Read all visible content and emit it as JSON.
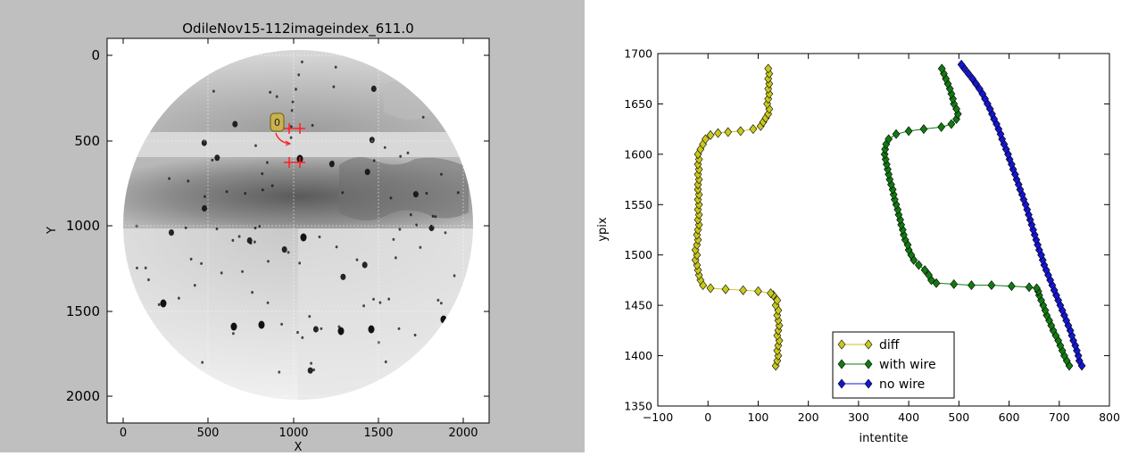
{
  "left_plot": {
    "title": "OdileNov15-112imageindex_611.0",
    "xlabel": "X",
    "ylabel": "Y",
    "xticks": [
      "0",
      "500",
      "1000",
      "1500",
      "2000"
    ],
    "yticks": [
      "0",
      "500",
      "1000",
      "1500",
      "2000"
    ],
    "annotation_label": "0",
    "crosshair_color": "#ff2020"
  },
  "chart_data": {
    "type": "line",
    "title": "",
    "xlabel": "intentite",
    "ylabel": "ypix",
    "xlim": [
      -100,
      800
    ],
    "ylim": [
      1350,
      1700
    ],
    "xticks": [
      "−100",
      "0",
      "100",
      "200",
      "300",
      "400",
      "500",
      "600",
      "700",
      "800"
    ],
    "yticks": [
      "1350",
      "1400",
      "1450",
      "1500",
      "1550",
      "1600",
      "1650",
      "1700"
    ],
    "legend_position": "lower-center",
    "series": [
      {
        "name": "diff",
        "color": "#c8c81e",
        "marker": "diamond",
        "points": [
          [
            135,
            1390
          ],
          [
            138,
            1395
          ],
          [
            140,
            1400
          ],
          [
            138,
            1405
          ],
          [
            140,
            1410
          ],
          [
            142,
            1415
          ],
          [
            138,
            1420
          ],
          [
            140,
            1425
          ],
          [
            142,
            1430
          ],
          [
            140,
            1435
          ],
          [
            138,
            1440
          ],
          [
            140,
            1445
          ],
          [
            135,
            1450
          ],
          [
            138,
            1455
          ],
          [
            130,
            1460
          ],
          [
            125,
            1462
          ],
          [
            100,
            1464
          ],
          [
            70,
            1465
          ],
          [
            35,
            1466
          ],
          [
            5,
            1467
          ],
          [
            -10,
            1470
          ],
          [
            -15,
            1475
          ],
          [
            -18,
            1480
          ],
          [
            -20,
            1485
          ],
          [
            -22,
            1490
          ],
          [
            -25,
            1495
          ],
          [
            -22,
            1500
          ],
          [
            -25,
            1505
          ],
          [
            -22,
            1510
          ],
          [
            -20,
            1515
          ],
          [
            -22,
            1520
          ],
          [
            -20,
            1525
          ],
          [
            -18,
            1530
          ],
          [
            -20,
            1535
          ],
          [
            -18,
            1540
          ],
          [
            -20,
            1545
          ],
          [
            -18,
            1550
          ],
          [
            -20,
            1555
          ],
          [
            -18,
            1560
          ],
          [
            -20,
            1565
          ],
          [
            -20,
            1570
          ],
          [
            -18,
            1575
          ],
          [
            -20,
            1580
          ],
          [
            -18,
            1585
          ],
          [
            -20,
            1590
          ],
          [
            -18,
            1595
          ],
          [
            -20,
            1600
          ],
          [
            -15,
            1605
          ],
          [
            -10,
            1610
          ],
          [
            -5,
            1615
          ],
          [
            5,
            1619
          ],
          [
            20,
            1621
          ],
          [
            40,
            1622
          ],
          [
            65,
            1623
          ],
          [
            90,
            1625
          ],
          [
            105,
            1628
          ],
          [
            110,
            1632
          ],
          [
            115,
            1636
          ],
          [
            120,
            1640
          ],
          [
            122,
            1645
          ],
          [
            118,
            1650
          ],
          [
            120,
            1655
          ],
          [
            122,
            1660
          ],
          [
            120,
            1665
          ],
          [
            122,
            1670
          ],
          [
            120,
            1675
          ],
          [
            122,
            1680
          ],
          [
            120,
            1685
          ]
        ]
      },
      {
        "name": "with wire",
        "color": "#117a11",
        "marker": "diamond",
        "points": [
          [
            720,
            1390
          ],
          [
            715,
            1395
          ],
          [
            710,
            1400
          ],
          [
            706,
            1405
          ],
          [
            702,
            1410
          ],
          [
            698,
            1415
          ],
          [
            693,
            1420
          ],
          [
            688,
            1425
          ],
          [
            684,
            1430
          ],
          [
            680,
            1435
          ],
          [
            675,
            1440
          ],
          [
            672,
            1445
          ],
          [
            668,
            1450
          ],
          [
            664,
            1455
          ],
          [
            660,
            1460
          ],
          [
            658,
            1464
          ],
          [
            655,
            1467
          ],
          [
            640,
            1468
          ],
          [
            605,
            1469
          ],
          [
            565,
            1470
          ],
          [
            525,
            1470
          ],
          [
            490,
            1471
          ],
          [
            455,
            1472
          ],
          [
            445,
            1475
          ],
          [
            440,
            1480
          ],
          [
            432,
            1485
          ],
          [
            420,
            1490
          ],
          [
            410,
            1495
          ],
          [
            405,
            1500
          ],
          [
            400,
            1505
          ],
          [
            398,
            1510
          ],
          [
            393,
            1515
          ],
          [
            390,
            1520
          ],
          [
            388,
            1525
          ],
          [
            385,
            1530
          ],
          [
            383,
            1535
          ],
          [
            380,
            1540
          ],
          [
            378,
            1545
          ],
          [
            375,
            1550
          ],
          [
            372,
            1555
          ],
          [
            370,
            1560
          ],
          [
            368,
            1565
          ],
          [
            365,
            1570
          ],
          [
            362,
            1575
          ],
          [
            360,
            1580
          ],
          [
            358,
            1585
          ],
          [
            356,
            1590
          ],
          [
            354,
            1595
          ],
          [
            352,
            1600
          ],
          [
            353,
            1605
          ],
          [
            355,
            1610
          ],
          [
            360,
            1615
          ],
          [
            375,
            1620
          ],
          [
            400,
            1623
          ],
          [
            430,
            1625
          ],
          [
            465,
            1627
          ],
          [
            485,
            1630
          ],
          [
            495,
            1635
          ],
          [
            498,
            1640
          ],
          [
            495,
            1645
          ],
          [
            490,
            1650
          ],
          [
            488,
            1655
          ],
          [
            485,
            1660
          ],
          [
            482,
            1665
          ],
          [
            478,
            1670
          ],
          [
            474,
            1675
          ],
          [
            470,
            1680
          ],
          [
            466,
            1685
          ]
        ]
      },
      {
        "name": "no wire",
        "color": "#1515d4",
        "marker": "diamond",
        "points": [
          [
            745,
            1390
          ],
          [
            740,
            1395
          ],
          [
            738,
            1400
          ],
          [
            735,
            1405
          ],
          [
            732,
            1410
          ],
          [
            728,
            1415
          ],
          [
            725,
            1420
          ],
          [
            722,
            1425
          ],
          [
            718,
            1430
          ],
          [
            714,
            1435
          ],
          [
            710,
            1440
          ],
          [
            706,
            1445
          ],
          [
            702,
            1450
          ],
          [
            698,
            1455
          ],
          [
            694,
            1460
          ],
          [
            690,
            1465
          ],
          [
            686,
            1470
          ],
          [
            682,
            1475
          ],
          [
            678,
            1480
          ],
          [
            674,
            1485
          ],
          [
            670,
            1490
          ],
          [
            667,
            1495
          ],
          [
            664,
            1500
          ],
          [
            660,
            1505
          ],
          [
            657,
            1510
          ],
          [
            654,
            1515
          ],
          [
            651,
            1520
          ],
          [
            648,
            1525
          ],
          [
            645,
            1530
          ],
          [
            642,
            1535
          ],
          [
            639,
            1540
          ],
          [
            636,
            1545
          ],
          [
            633,
            1550
          ],
          [
            629,
            1555
          ],
          [
            626,
            1560
          ],
          [
            622,
            1565
          ],
          [
            619,
            1570
          ],
          [
            615,
            1575
          ],
          [
            612,
            1580
          ],
          [
            608,
            1585
          ],
          [
            605,
            1590
          ],
          [
            601,
            1595
          ],
          [
            598,
            1600
          ],
          [
            594,
            1605
          ],
          [
            590,
            1610
          ],
          [
            586,
            1615
          ],
          [
            583,
            1620
          ],
          [
            579,
            1625
          ],
          [
            575,
            1630
          ],
          [
            570,
            1635
          ],
          [
            566,
            1640
          ],
          [
            562,
            1645
          ],
          [
            557,
            1650
          ],
          [
            552,
            1655
          ],
          [
            547,
            1660
          ],
          [
            541,
            1665
          ],
          [
            534,
            1670
          ],
          [
            527,
            1675
          ],
          [
            519,
            1680
          ],
          [
            511,
            1685
          ],
          [
            505,
            1689
          ]
        ]
      }
    ]
  }
}
